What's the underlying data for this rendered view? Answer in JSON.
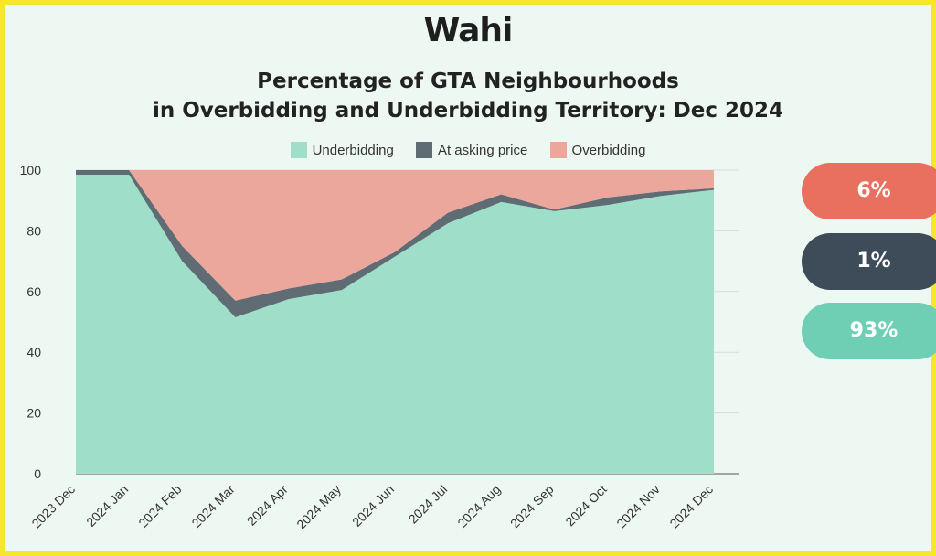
{
  "logo": {
    "text": "Wahi"
  },
  "header": {
    "title_line1": "Percentage of GTA Neighbourhoods",
    "title_line2": "in Overbidding and Underbidding Territory: Dec 2024"
  },
  "colors": {
    "background": "#eef8f3",
    "border": "#f7e72c",
    "underbidding": "#9fdfca",
    "at_asking": "#5f6c74",
    "overbidding": "#eba79c",
    "badge_over": "#e9705f",
    "badge_asking": "#3d4c58",
    "badge_under": "#6fcfb5"
  },
  "badges": {
    "overbidding": "6%",
    "at_asking": "1%",
    "underbidding": "93%"
  },
  "chart_data": {
    "type": "area",
    "stacked": true,
    "x": [
      "2023 Dec",
      "2024 Jan",
      "2024 Feb",
      "2024 Mar",
      "2024 Apr",
      "2024 May",
      "2024 Jun",
      "2024 Jul",
      "2024 Aug",
      "2024 Sep",
      "2024 Oct",
      "2024 Nov",
      "2024 Dec"
    ],
    "series": [
      {
        "name": "Underbidding",
        "values": [
          98.5,
          98.5,
          70,
          51.5,
          57.5,
          60.5,
          71.5,
          82.5,
          89.5,
          86.5,
          88.5,
          91.5,
          93.5
        ]
      },
      {
        "name": "At asking price",
        "values": [
          1.5,
          1.5,
          5,
          5.5,
          3.5,
          3.5,
          1.5,
          3.5,
          2.5,
          0.5,
          2.5,
          1.5,
          0.5
        ]
      },
      {
        "name": "Overbidding",
        "values": [
          0,
          0,
          25,
          43,
          39,
          36,
          27,
          14,
          8,
          13,
          9,
          7,
          6
        ]
      }
    ],
    "yticks": [
      0,
      20,
      40,
      60,
      80,
      100
    ],
    "ylim": [
      0,
      100
    ],
    "legend_position": "top",
    "grid": true
  }
}
